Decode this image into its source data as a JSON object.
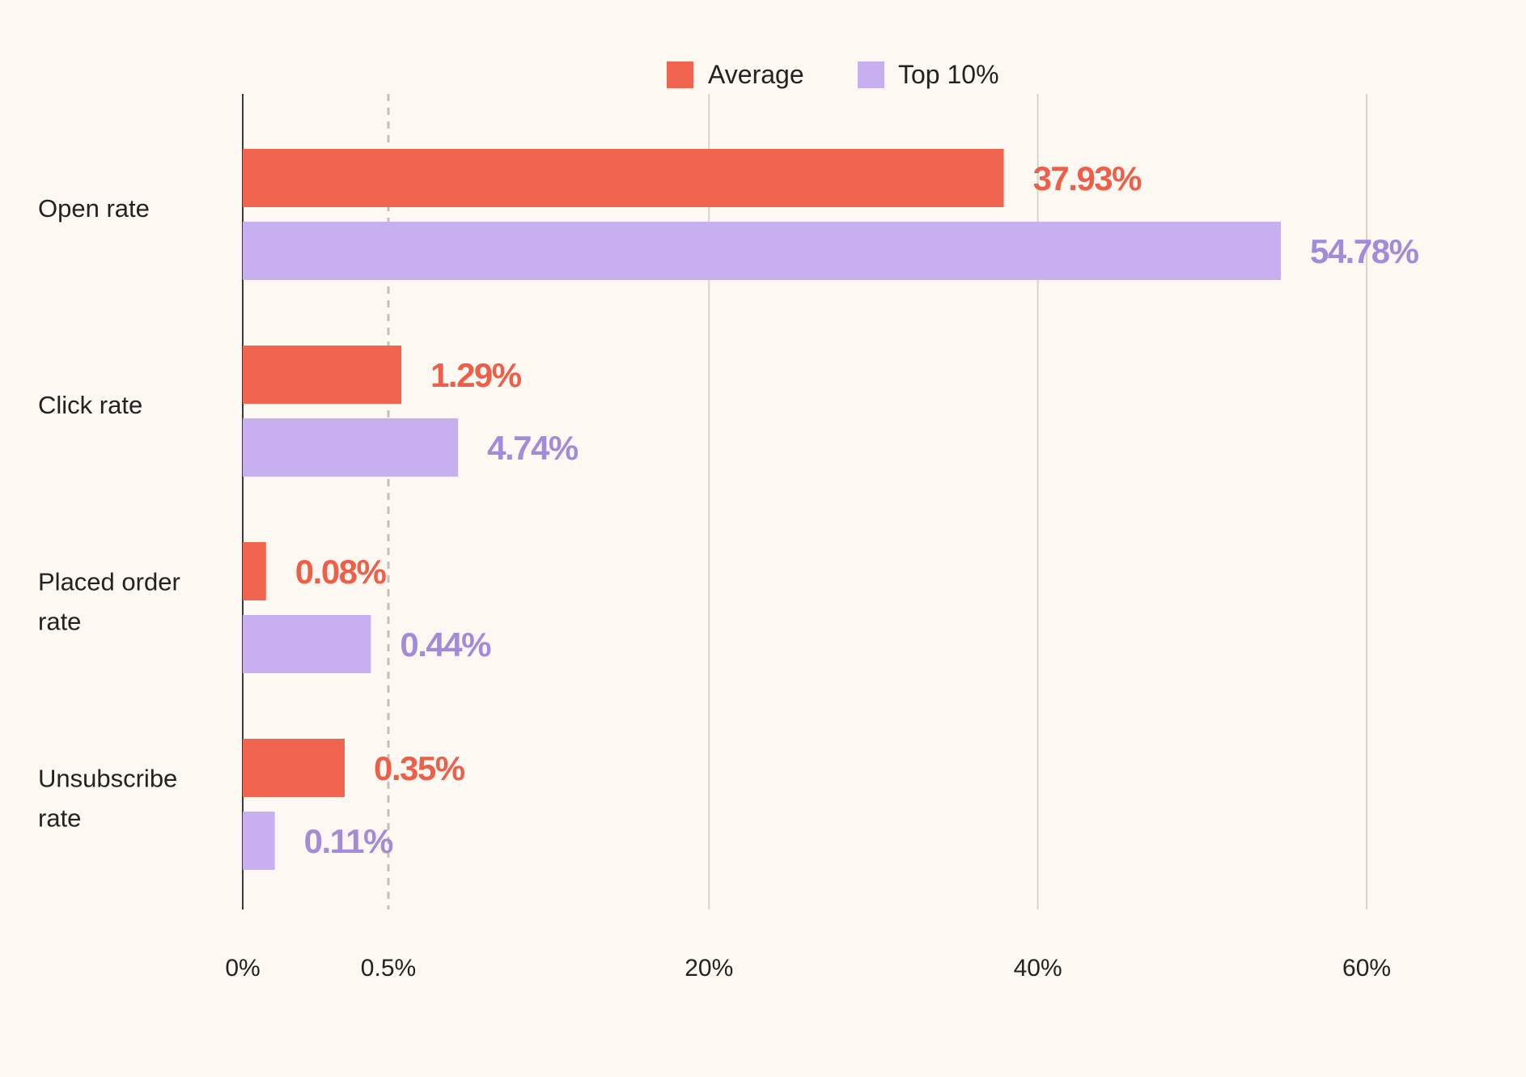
{
  "chart_data": {
    "type": "bar",
    "orientation": "horizontal",
    "title": "",
    "xlabel": "",
    "ylabel": "",
    "scale": "piecewise-linear",
    "grid": true,
    "legend_position": "top-center",
    "categories": [
      [
        "Open rate"
      ],
      [
        "Click rate"
      ],
      [
        "Placed order",
        "rate"
      ],
      [
        "Unsubscribe",
        "rate"
      ]
    ],
    "series": [
      {
        "name": "Average",
        "color": "#f06450",
        "label_color": "#ee5f4a",
        "values": [
          37.93,
          1.29,
          0.08,
          0.35
        ],
        "labels": [
          "37.93%",
          "1.29%",
          "0.08%",
          "0.35%"
        ]
      },
      {
        "name": "Top 10%",
        "color": "#c8b0f0",
        "label_color": "#a28bd8",
        "values": [
          54.78,
          4.74,
          0.44,
          0.11
        ],
        "labels": [
          "54.78%",
          "4.74%",
          "0.44%",
          "0.11%"
        ]
      }
    ],
    "ticks": [
      {
        "value": 0,
        "label": "0%"
      },
      {
        "value": 0.5,
        "label": "0.5%",
        "dashed": true
      },
      {
        "value": 20,
        "label": "20%"
      },
      {
        "value": 40,
        "label": "40%"
      },
      {
        "value": 60,
        "label": "60%"
      }
    ]
  }
}
